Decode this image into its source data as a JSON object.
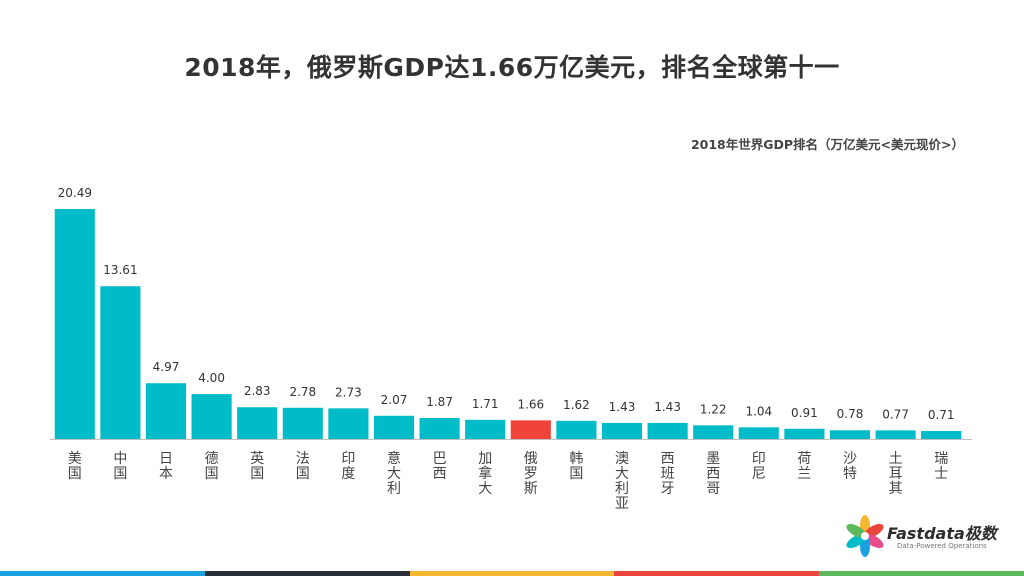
{
  "title": "2018年，俄罗斯GDP达1.66万亿美元，排名全球第十一",
  "subtitle": "2018年世界GDP排名（万亿美元<美元现价>）",
  "logo": {
    "name": "Fastdata极数",
    "tagline": "Data-Powered Operations"
  },
  "colors": {
    "bar": "#00BCC8",
    "highlight": "#F0433A",
    "footer": [
      "#1BA1E2",
      "#2B2F3A",
      "#F5B731",
      "#E8463C",
      "#5DB85C"
    ]
  },
  "chart_data": {
    "type": "bar",
    "categories": [
      "美国",
      "中国",
      "日本",
      "德国",
      "英国",
      "法国",
      "印度",
      "意大利",
      "巴西",
      "加拿大",
      "俄罗斯",
      "韩国",
      "澳大利亚",
      "西班牙",
      "墨西哥",
      "印尼",
      "荷兰",
      "沙特",
      "土耳其",
      "瑞士"
    ],
    "values": [
      20.49,
      13.61,
      4.97,
      4.0,
      2.83,
      2.78,
      2.73,
      2.07,
      1.87,
      1.71,
      1.66,
      1.62,
      1.43,
      1.43,
      1.22,
      1.04,
      0.91,
      0.78,
      0.77,
      0.71
    ],
    "value_labels": [
      "20.49",
      "13.61",
      "4.97",
      "4.00",
      "2.83",
      "2.78",
      "2.73",
      "2.07",
      "1.87",
      "1.71",
      "1.66",
      "1.62",
      "1.43",
      "1.43",
      "1.22",
      "1.04",
      "0.91",
      "0.78",
      "0.77",
      "0.71"
    ],
    "highlight": "俄罗斯",
    "title": "2018年世界GDP排名（万亿美元<美元现价>）",
    "xlabel": "",
    "ylabel": "",
    "ylim": [
      0,
      20.49
    ],
    "grid": false,
    "legend": "none"
  }
}
